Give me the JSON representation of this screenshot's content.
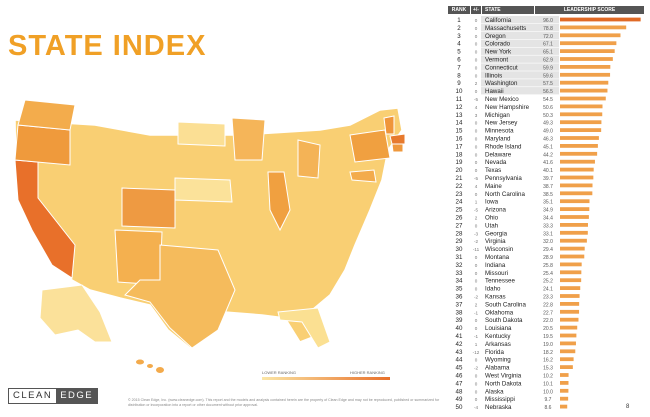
{
  "title": "STATE INDEX",
  "legend": {
    "low": "LOWER RANKING",
    "high": "HIGHER RANKING"
  },
  "footer": "© 2015 Clean Edge, Inc. (www.cleanedge.com). This report and the models and analysis contained herein are the property of Clean Edge and may not be reproduced, published or summarized for distribution or incorporation into a report or other document without prior approval.",
  "logo": {
    "clean": "CLEAN",
    "edge": "EDGE"
  },
  "page_number": "8",
  "colors": {
    "title": "#f0a026",
    "bar": "#f0a04a",
    "top_bar": "#e06a26",
    "header_bg": "#555555",
    "highlight_row": "#e4e4e4"
  },
  "table": {
    "headers": [
      "RANK",
      "+/-",
      "STATE",
      "LEADERSHIP SCORE"
    ]
  },
  "chart_data": {
    "type": "bar",
    "orientation": "horizontal",
    "categories": [
      "California",
      "Massachusetts",
      "Oregon",
      "Colorado",
      "New York",
      "Vermont",
      "Connecticut",
      "Illinois",
      "Washington",
      "Hawaii",
      "New Mexico",
      "New Hampshire",
      "Michigan",
      "New Jersey",
      "Minnesota",
      "Maryland",
      "Rhode Island",
      "Delaware",
      "Nevada",
      "Texas",
      "Pennsylvania",
      "Maine",
      "North Carolina",
      "Iowa",
      "Arizona",
      "Ohio",
      "Utah",
      "Georgia",
      "Virginia",
      "Wisconsin",
      "Montana",
      "Indiana",
      "Missouri",
      "Tennessee",
      "Idaho",
      "Kansas",
      "South Carolina",
      "Oklahoma",
      "South Dakota",
      "Louisiana",
      "Kentucky",
      "Arkansas",
      "Florida",
      "Wyoming",
      "Alabama",
      "West Virginia",
      "North Dakota",
      "Alaska",
      "Mississippi",
      "Nebraska"
    ],
    "ranks": [
      1,
      2,
      3,
      4,
      5,
      6,
      7,
      8,
      9,
      10,
      11,
      12,
      13,
      14,
      15,
      16,
      17,
      18,
      19,
      20,
      21,
      22,
      23,
      24,
      25,
      26,
      27,
      28,
      29,
      30,
      31,
      32,
      33,
      34,
      35,
      36,
      37,
      38,
      39,
      40,
      41,
      42,
      43,
      44,
      45,
      46,
      47,
      48,
      49,
      50
    ],
    "changes": [
      "0",
      "0",
      "0",
      "0",
      "0",
      "0",
      "0",
      "0",
      "2",
      "0",
      "-5",
      "4",
      "3",
      "0",
      "0",
      "0",
      "0",
      "0",
      "0",
      "0",
      "-5",
      "4",
      "0",
      "1",
      "-5",
      "2",
      "0",
      "-3",
      "-2",
      "-11",
      "0",
      "0",
      "0",
      "0",
      "0",
      "-2",
      "2",
      "-1",
      "0",
      "0",
      "-1",
      "1",
      "-12",
      "0",
      "-2",
      "0",
      "0",
      "0",
      "0",
      "-4"
    ],
    "values": [
      96.0,
      78.8,
      72.0,
      67.1,
      65.1,
      62.9,
      59.9,
      59.6,
      57.5,
      56.5,
      54.5,
      50.6,
      50.3,
      49.3,
      49.0,
      46.3,
      45.1,
      44.2,
      41.6,
      40.1,
      39.7,
      38.7,
      38.5,
      35.1,
      34.9,
      34.4,
      33.3,
      33.1,
      32.0,
      29.4,
      28.9,
      25.8,
      25.4,
      25.2,
      24.1,
      23.3,
      22.8,
      22.7,
      22.0,
      20.5,
      19.5,
      19.0,
      18.2,
      16.2,
      15.3,
      10.2,
      10.1,
      10.0,
      9.7,
      8.6
    ],
    "highlighted_ranks": [
      1,
      2,
      3,
      4,
      5,
      6,
      7,
      8,
      9,
      10
    ],
    "xlim": [
      0,
      100
    ]
  }
}
